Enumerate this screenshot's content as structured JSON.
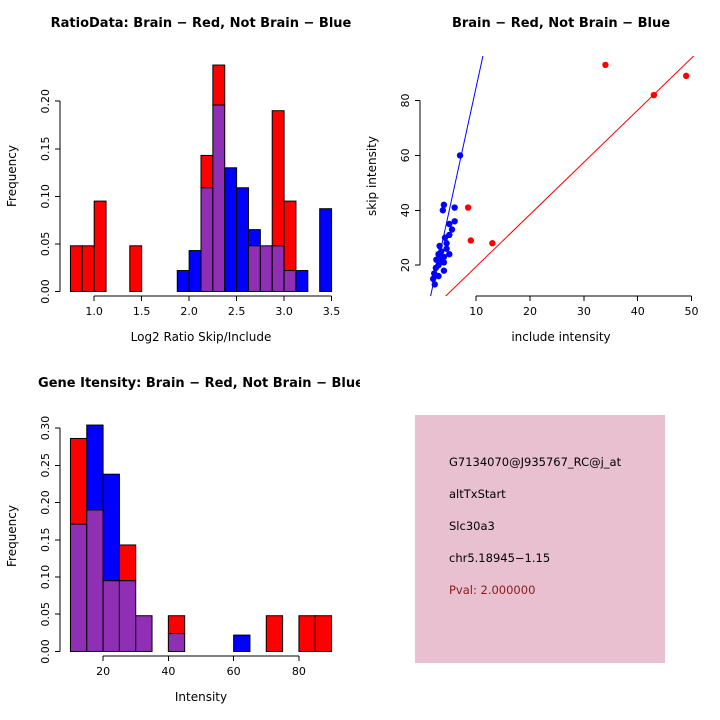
{
  "figure": {
    "bg_color": "#ffffff"
  },
  "chart_data": [
    {
      "id": "ratio-hist",
      "type": "bar",
      "title": "RatioData: Brain − Red, Not Brain − Blue",
      "xlabel": "Log2 Ratio Skip/Include",
      "ylabel": "Frequency",
      "xlim": [
        0.75,
        3.5
      ],
      "ylim": [
        0,
        0.238
      ],
      "xticks": [
        1.0,
        1.5,
        2.0,
        2.5,
        3.0,
        3.5
      ],
      "xtick_labels": [
        "1.0",
        "1.5",
        "2.0",
        "2.5",
        "3.0",
        "3.5"
      ],
      "yticks": [
        0,
        0.05,
        0.1,
        0.15,
        0.2
      ],
      "ytick_labels": [
        "0.00",
        "0.05",
        "0.10",
        "0.15",
        "0.20"
      ],
      "bin_width": 0.125,
      "red_color": "#ff0000",
      "blue_color": "#0000ff",
      "overlap_color": "#8f2fb3",
      "legend": {
        "red": "Brain",
        "blue": "Not Brain"
      },
      "bins": [
        {
          "x": 0.75,
          "red": 0.048,
          "blue": 0
        },
        {
          "x": 0.875,
          "red": 0.048,
          "blue": 0
        },
        {
          "x": 1.0,
          "red": 0.095,
          "blue": 0
        },
        {
          "x": 1.375,
          "red": 0.048,
          "blue": 0
        },
        {
          "x": 1.875,
          "red": 0,
          "blue": 0.022
        },
        {
          "x": 2.0,
          "red": 0,
          "blue": 0.043
        },
        {
          "x": 2.125,
          "red": 0.143,
          "blue": 0.109
        },
        {
          "x": 2.25,
          "red": 0.238,
          "blue": 0.196
        },
        {
          "x": 2.375,
          "red": 0,
          "blue": 0.13
        },
        {
          "x": 2.5,
          "red": 0,
          "blue": 0.109
        },
        {
          "x": 2.625,
          "red": 0.048,
          "blue": 0.065
        },
        {
          "x": 2.75,
          "red": 0.048,
          "blue": 0.048
        },
        {
          "x": 2.875,
          "red": 0.19,
          "blue": 0.048
        },
        {
          "x": 3.0,
          "red": 0.095,
          "blue": 0.022
        },
        {
          "x": 3.125,
          "red": 0,
          "blue": 0.022
        },
        {
          "x": 3.375,
          "red": 0,
          "blue": 0.087
        }
      ]
    },
    {
      "id": "scatter-intensity",
      "type": "scatter",
      "title": "Brain − Red, Not Brain − Blue",
      "xlabel": "include intensity",
      "ylabel": "skip intensity",
      "xlim": [
        1.5,
        50
      ],
      "ylim": [
        12,
        93
      ],
      "xticks": [
        10,
        20,
        30,
        40,
        50
      ],
      "xtick_labels": [
        "10",
        "20",
        "30",
        "40",
        "50"
      ],
      "yticks": [
        20,
        40,
        60,
        80
      ],
      "ytick_labels": [
        "20",
        "40",
        "60",
        "80"
      ],
      "series": [
        {
          "name": "Brain",
          "color": "#ff0000",
          "points": [
            [
              8.5,
              41
            ],
            [
              9,
              29
            ],
            [
              13,
              28
            ],
            [
              34,
              93
            ],
            [
              43,
              82
            ],
            [
              49,
              89
            ]
          ]
        },
        {
          "name": "Not Brain",
          "color": "#0000ff",
          "points": [
            [
              2,
              15
            ],
            [
              2.2,
              17
            ],
            [
              2.3,
              13
            ],
            [
              2.5,
              19
            ],
            [
              2.6,
              22
            ],
            [
              3,
              16
            ],
            [
              3,
              20
            ],
            [
              3,
              24
            ],
            [
              3.2,
              27
            ],
            [
              3.5,
              22
            ],
            [
              3.5,
              25
            ],
            [
              4,
              18
            ],
            [
              4,
              21
            ],
            [
              4,
              23
            ],
            [
              4,
              42
            ],
            [
              4.2,
              30
            ],
            [
              4.5,
              26
            ],
            [
              4.5,
              28
            ],
            [
              5,
              24
            ],
            [
              5,
              31
            ],
            [
              5,
              35
            ],
            [
              5.5,
              33
            ],
            [
              6,
              36
            ],
            [
              6,
              41
            ],
            [
              3.8,
              40
            ],
            [
              7,
              60
            ]
          ]
        }
      ],
      "lines": [
        {
          "name": "not-brain-fit",
          "color": "#0000ff",
          "slope": 9.0,
          "intercept": -5
        },
        {
          "name": "brain-fit",
          "color": "#ff0000",
          "slope": 1.9,
          "intercept": 0.5
        }
      ]
    },
    {
      "id": "gene-hist",
      "type": "bar",
      "title": "Gene Itensity: Brain − Red, Not Brain − Blue",
      "xlabel": "Intensity",
      "ylabel": "Frequency",
      "xlim": [
        10,
        90
      ],
      "ylim": [
        0,
        0.304
      ],
      "xticks": [
        20,
        40,
        60,
        80
      ],
      "xtick_labels": [
        "20",
        "40",
        "60",
        "80"
      ],
      "yticks": [
        0,
        0.05,
        0.1,
        0.15,
        0.2,
        0.25,
        0.3
      ],
      "ytick_labels": [
        "0.00",
        "0.05",
        "0.10",
        "0.15",
        "0.20",
        "0.25",
        "0.30"
      ],
      "bin_width": 5,
      "red_color": "#ff0000",
      "blue_color": "#0000ff",
      "overlap_color": "#8f2fb3",
      "legend": {
        "red": "Brain",
        "blue": "Not Brain"
      },
      "bins": [
        {
          "x": 10,
          "red": 0.286,
          "blue": 0.171
        },
        {
          "x": 15,
          "red": 0.19,
          "blue": 0.304
        },
        {
          "x": 20,
          "red": 0.095,
          "blue": 0.238
        },
        {
          "x": 25,
          "red": 0.143,
          "blue": 0.095
        },
        {
          "x": 30,
          "red": 0.048,
          "blue": 0.048
        },
        {
          "x": 40,
          "red": 0.048,
          "blue": 0.024
        },
        {
          "x": 60,
          "red": 0,
          "blue": 0.022
        },
        {
          "x": 70,
          "red": 0.048,
          "blue": 0
        },
        {
          "x": 80,
          "red": 0.048,
          "blue": 0
        },
        {
          "x": 85,
          "red": 0.048,
          "blue": 0
        }
      ]
    }
  ],
  "info_box": {
    "bg_color": "#e8c0d0",
    "lines": [
      {
        "text": "G7134070@J935767_RC@j_at",
        "color": "#000000"
      },
      {
        "text": "altTxStart",
        "color": "#000000"
      },
      {
        "text": "Slc30a3",
        "color": "#000000"
      },
      {
        "text": "chr5.18945−1.15",
        "color": "#000000"
      },
      {
        "text": "Pval: 2.000000",
        "color": "#8b1a1a"
      }
    ]
  }
}
